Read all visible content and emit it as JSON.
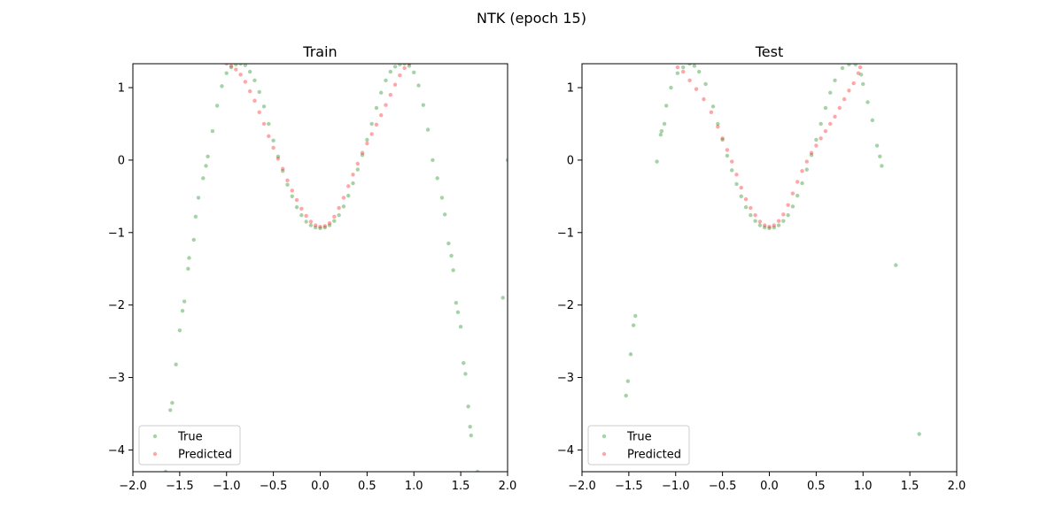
{
  "figure": {
    "suptitle": "NTK (epoch 15)"
  },
  "colors": {
    "true": "#008000",
    "predicted": "#ff0000",
    "axis": "#000000",
    "legend_border": "#cccccc"
  },
  "chart_data": [
    {
      "type": "scatter",
      "title": "Train",
      "xlabel": "",
      "ylabel": "",
      "xlim": [
        -2.0,
        2.0
      ],
      "ylim": [
        -4.3,
        1.33
      ],
      "x_ticks": [
        -2.0,
        -1.5,
        -1.0,
        -0.5,
        0.0,
        0.5,
        1.0,
        1.5,
        2.0
      ],
      "x_tick_labels": [
        "−2.0",
        "−1.5",
        "−1.0",
        "−0.5",
        "0.0",
        "0.5",
        "1.0",
        "1.5",
        "2.0"
      ],
      "y_ticks": [
        -4,
        -3,
        -2,
        -1,
        0,
        1
      ],
      "y_tick_labels": [
        "−4",
        "−3",
        "−2",
        "−1",
        "0",
        "1"
      ],
      "grid": false,
      "legend_position": "lower-left",
      "series": [
        {
          "name": "True",
          "color": "#008000",
          "points": [
            [
              -1.65,
              -4.3
            ],
            [
              -1.6,
              -3.45
            ],
            [
              -1.58,
              -3.35
            ],
            [
              -1.54,
              -2.82
            ],
            [
              -1.5,
              -2.35
            ],
            [
              -1.47,
              -2.08
            ],
            [
              -1.45,
              -1.95
            ],
            [
              -1.41,
              -1.5
            ],
            [
              -1.4,
              -1.35
            ],
            [
              -1.35,
              -1.1
            ],
            [
              -1.33,
              -0.78
            ],
            [
              -1.3,
              -0.52
            ],
            [
              -1.25,
              -0.25
            ],
            [
              -1.22,
              -0.08
            ],
            [
              -1.2,
              0.05
            ],
            [
              -1.15,
              0.4
            ],
            [
              -1.1,
              0.75
            ],
            [
              -1.05,
              1.02
            ],
            [
              -1.0,
              1.2
            ],
            [
              -0.95,
              1.28
            ],
            [
              -0.9,
              1.32
            ],
            [
              -0.85,
              1.33
            ],
            [
              -0.8,
              1.31
            ],
            [
              -0.75,
              1.22
            ],
            [
              -0.7,
              1.1
            ],
            [
              -0.65,
              0.94
            ],
            [
              -0.6,
              0.74
            ],
            [
              -0.55,
              0.5
            ],
            [
              -0.5,
              0.27
            ],
            [
              -0.45,
              0.05
            ],
            [
              -0.4,
              -0.15
            ],
            [
              -0.35,
              -0.34
            ],
            [
              -0.3,
              -0.5
            ],
            [
              -0.25,
              -0.65
            ],
            [
              -0.2,
              -0.76
            ],
            [
              -0.15,
              -0.85
            ],
            [
              -0.1,
              -0.9
            ],
            [
              -0.05,
              -0.93
            ],
            [
              0.0,
              -0.94
            ],
            [
              0.05,
              -0.93
            ],
            [
              0.1,
              -0.9
            ],
            [
              0.15,
              -0.84
            ],
            [
              0.2,
              -0.76
            ],
            [
              0.25,
              -0.64
            ],
            [
              0.3,
              -0.49
            ],
            [
              0.35,
              -0.32
            ],
            [
              0.4,
              -0.13
            ],
            [
              0.45,
              0.07
            ],
            [
              0.5,
              0.28
            ],
            [
              0.55,
              0.5
            ],
            [
              0.6,
              0.72
            ],
            [
              0.65,
              0.93
            ],
            [
              0.7,
              1.1
            ],
            [
              0.75,
              1.22
            ],
            [
              0.8,
              1.29
            ],
            [
              0.85,
              1.32
            ],
            [
              0.9,
              1.33
            ],
            [
              0.95,
              1.3
            ],
            [
              1.0,
              1.21
            ],
            [
              1.05,
              1.03
            ],
            [
              1.1,
              0.76
            ],
            [
              1.15,
              0.42
            ],
            [
              1.2,
              0.0
            ],
            [
              1.25,
              -0.25
            ],
            [
              1.3,
              -0.52
            ],
            [
              1.33,
              -0.75
            ],
            [
              1.37,
              -1.15
            ],
            [
              1.4,
              -1.32
            ],
            [
              1.42,
              -1.52
            ],
            [
              1.45,
              -1.97
            ],
            [
              1.47,
              -2.1
            ],
            [
              1.5,
              -2.3
            ],
            [
              1.53,
              -2.8
            ],
            [
              1.55,
              -2.95
            ],
            [
              1.58,
              -3.4
            ],
            [
              1.6,
              -3.68
            ],
            [
              1.61,
              -3.8
            ],
            [
              1.68,
              -4.3
            ],
            [
              1.95,
              -1.9
            ],
            [
              2.0,
              0.0
            ]
          ]
        },
        {
          "name": "Predicted",
          "color": "#ff0000",
          "points": [
            [
              -1.0,
              1.33
            ],
            [
              -0.95,
              1.3
            ],
            [
              -0.9,
              1.25
            ],
            [
              -0.85,
              1.18
            ],
            [
              -0.8,
              1.08
            ],
            [
              -0.75,
              0.95
            ],
            [
              -0.7,
              0.82
            ],
            [
              -0.65,
              0.66
            ],
            [
              -0.6,
              0.5
            ],
            [
              -0.55,
              0.33
            ],
            [
              -0.5,
              0.17
            ],
            [
              -0.45,
              0.02
            ],
            [
              -0.4,
              -0.12
            ],
            [
              -0.35,
              -0.28
            ],
            [
              -0.3,
              -0.42
            ],
            [
              -0.25,
              -0.55
            ],
            [
              -0.2,
              -0.67
            ],
            [
              -0.15,
              -0.77
            ],
            [
              -0.1,
              -0.85
            ],
            [
              -0.05,
              -0.9
            ],
            [
              0.0,
              -0.92
            ],
            [
              0.05,
              -0.91
            ],
            [
              0.1,
              -0.87
            ],
            [
              0.15,
              -0.78
            ],
            [
              0.2,
              -0.66
            ],
            [
              0.25,
              -0.52
            ],
            [
              0.3,
              -0.36
            ],
            [
              0.35,
              -0.2
            ],
            [
              0.4,
              -0.05
            ],
            [
              0.45,
              0.1
            ],
            [
              0.5,
              0.23
            ],
            [
              0.55,
              0.36
            ],
            [
              0.6,
              0.49
            ],
            [
              0.65,
              0.62
            ],
            [
              0.7,
              0.76
            ],
            [
              0.75,
              0.9
            ],
            [
              0.8,
              1.04
            ],
            [
              0.85,
              1.17
            ],
            [
              0.9,
              1.27
            ],
            [
              0.95,
              1.33
            ]
          ]
        }
      ]
    },
    {
      "type": "scatter",
      "title": "Test",
      "xlabel": "",
      "ylabel": "",
      "xlim": [
        -2.0,
        2.0
      ],
      "ylim": [
        -4.3,
        1.33
      ],
      "x_ticks": [
        -2.0,
        -1.5,
        -1.0,
        -0.5,
        0.0,
        0.5,
        1.0,
        1.5,
        2.0
      ],
      "x_tick_labels": [
        "−2.0",
        "−1.5",
        "−1.0",
        "−0.5",
        "0.0",
        "0.5",
        "1.0",
        "1.5",
        "2.0"
      ],
      "y_ticks": [
        -4,
        -3,
        -2,
        -1,
        0,
        1
      ],
      "y_tick_labels": [
        "−4",
        "−3",
        "−2",
        "−1",
        "0",
        "1"
      ],
      "grid": false,
      "legend_position": "lower-left",
      "series": [
        {
          "name": "True",
          "color": "#008000",
          "points": [
            [
              -1.53,
              -3.25
            ],
            [
              -1.51,
              -3.05
            ],
            [
              -1.48,
              -2.68
            ],
            [
              -1.45,
              -2.28
            ],
            [
              -1.43,
              -2.15
            ],
            [
              -1.2,
              -0.02
            ],
            [
              -1.16,
              0.35
            ],
            [
              -1.15,
              0.4
            ],
            [
              -1.12,
              0.5
            ],
            [
              -1.1,
              0.75
            ],
            [
              -1.05,
              1.0
            ],
            [
              -0.98,
              1.2
            ],
            [
              -0.92,
              1.28
            ],
            [
              -0.85,
              1.33
            ],
            [
              -0.8,
              1.3
            ],
            [
              -0.75,
              1.22
            ],
            [
              -0.68,
              1.05
            ],
            [
              -0.6,
              0.74
            ],
            [
              -0.55,
              0.5
            ],
            [
              -0.5,
              0.28
            ],
            [
              -0.45,
              0.06
            ],
            [
              -0.4,
              -0.14
            ],
            [
              -0.35,
              -0.33
            ],
            [
              -0.3,
              -0.5
            ],
            [
              -0.25,
              -0.65
            ],
            [
              -0.2,
              -0.76
            ],
            [
              -0.15,
              -0.84
            ],
            [
              -0.1,
              -0.9
            ],
            [
              -0.05,
              -0.93
            ],
            [
              0.0,
              -0.94
            ],
            [
              0.05,
              -0.93
            ],
            [
              0.1,
              -0.9
            ],
            [
              0.15,
              -0.84
            ],
            [
              0.2,
              -0.76
            ],
            [
              0.25,
              -0.64
            ],
            [
              0.3,
              -0.49
            ],
            [
              0.35,
              -0.32
            ],
            [
              0.4,
              -0.13
            ],
            [
              0.45,
              0.07
            ],
            [
              0.5,
              0.28
            ],
            [
              0.55,
              0.5
            ],
            [
              0.6,
              0.72
            ],
            [
              0.65,
              0.93
            ],
            [
              0.7,
              1.1
            ],
            [
              0.78,
              1.27
            ],
            [
              0.85,
              1.32
            ],
            [
              0.92,
              1.32
            ],
            [
              0.98,
              1.18
            ],
            [
              1.0,
              1.05
            ],
            [
              1.05,
              0.8
            ],
            [
              1.1,
              0.55
            ],
            [
              1.15,
              0.2
            ],
            [
              1.18,
              0.05
            ],
            [
              1.2,
              -0.08
            ],
            [
              1.35,
              -1.45
            ],
            [
              1.6,
              -3.78
            ]
          ]
        },
        {
          "name": "Predicted",
          "color": "#ff0000",
          "points": [
            [
              -0.98,
              1.28
            ],
            [
              -0.92,
              1.22
            ],
            [
              -0.85,
              1.1
            ],
            [
              -0.78,
              0.98
            ],
            [
              -0.7,
              0.84
            ],
            [
              -0.62,
              0.66
            ],
            [
              -0.55,
              0.46
            ],
            [
              -0.5,
              0.3
            ],
            [
              -0.45,
              0.14
            ],
            [
              -0.4,
              -0.02
            ],
            [
              -0.35,
              -0.2
            ],
            [
              -0.3,
              -0.38
            ],
            [
              -0.25,
              -0.54
            ],
            [
              -0.2,
              -0.66
            ],
            [
              -0.15,
              -0.76
            ],
            [
              -0.1,
              -0.85
            ],
            [
              -0.05,
              -0.9
            ],
            [
              0.0,
              -0.92
            ],
            [
              0.05,
              -0.9
            ],
            [
              0.1,
              -0.84
            ],
            [
              0.15,
              -0.75
            ],
            [
              0.2,
              -0.62
            ],
            [
              0.25,
              -0.46
            ],
            [
              0.3,
              -0.3
            ],
            [
              0.35,
              -0.15
            ],
            [
              0.4,
              -0.02
            ],
            [
              0.45,
              0.1
            ],
            [
              0.5,
              0.2
            ],
            [
              0.55,
              0.3
            ],
            [
              0.6,
              0.4
            ],
            [
              0.65,
              0.5
            ],
            [
              0.7,
              0.6
            ],
            [
              0.75,
              0.72
            ],
            [
              0.8,
              0.84
            ],
            [
              0.85,
              0.96
            ],
            [
              0.9,
              1.06
            ],
            [
              0.95,
              1.2
            ],
            [
              0.97,
              1.28
            ]
          ]
        }
      ]
    }
  ]
}
